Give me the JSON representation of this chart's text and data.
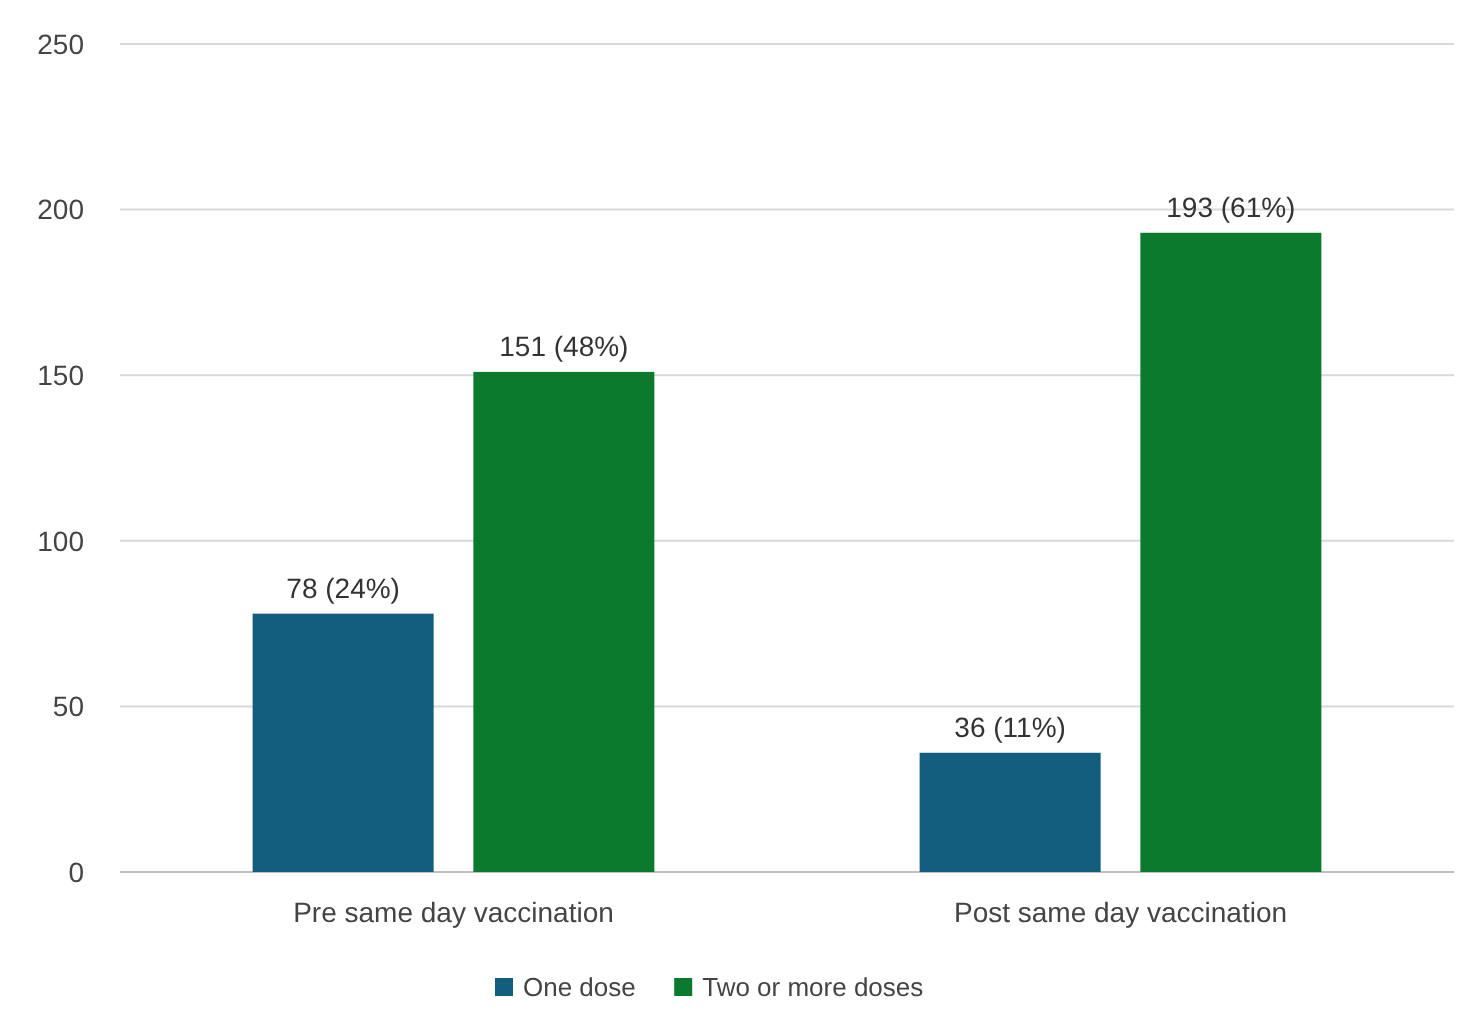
{
  "chart_data": {
    "type": "bar",
    "categories": [
      "Pre same day vaccination",
      "Post same day vaccination"
    ],
    "series": [
      {
        "name": "One dose",
        "color": "#135d7e",
        "values": [
          78,
          36
        ],
        "value_labels": [
          "78 (24%)",
          "36 (11%)"
        ]
      },
      {
        "name": "Two or more doses",
        "color": "#0b7a2c",
        "values": [
          151,
          193
        ],
        "value_labels": [
          "151 (48%)",
          "193 (61%)"
        ]
      }
    ],
    "ylim": [
      0,
      250
    ],
    "yticks": [
      0,
      50,
      100,
      150,
      200,
      250
    ],
    "grid": "y",
    "legend": "bottom"
  }
}
